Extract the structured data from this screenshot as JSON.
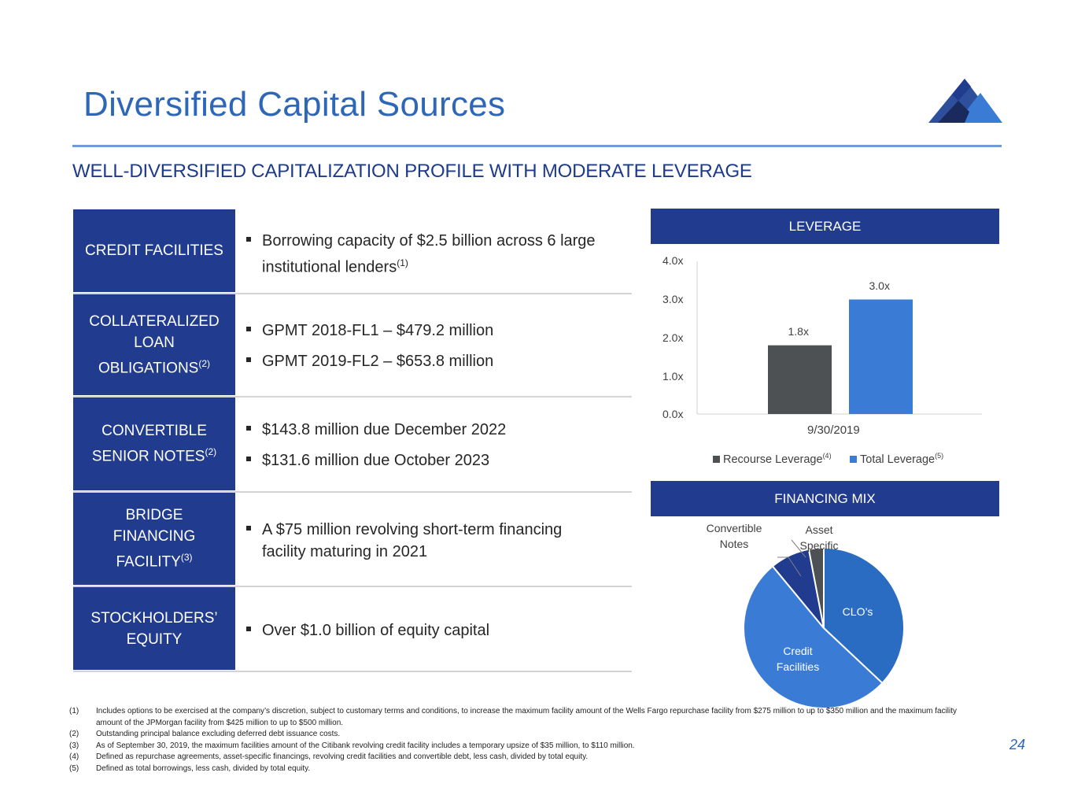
{
  "slide": {
    "title": "Diversified Capital Sources",
    "subtitle": "WELL-DIVERSIFIED CAPITALIZATION PROFILE WITH MODERATE LEVERAGE",
    "page_number": "24"
  },
  "sources": [
    {
      "label": "CREDIT FACILITIES",
      "sup": "",
      "bullets": [
        {
          "text": "Borrowing capacity of $2.5 billion across 6 large institutional lenders",
          "sup": "(1)"
        }
      ]
    },
    {
      "label": "COLLATERALIZED LOAN OBLIGATIONS",
      "sup": "(2)",
      "bullets": [
        {
          "text": "GPMT 2018-FL1 – $479.2 million",
          "sup": ""
        },
        {
          "text": "GPMT 2019-FL2 – $653.8 million",
          "sup": ""
        }
      ]
    },
    {
      "label": "CONVERTIBLE SENIOR NOTES",
      "sup": "(2)",
      "bullets": [
        {
          "text": "$143.8 million due December 2022",
          "sup": ""
        },
        {
          "text": "$131.6 million due October 2023",
          "sup": ""
        }
      ]
    },
    {
      "label": "BRIDGE FINANCING FACILITY",
      "sup": "(3)",
      "bullets": [
        {
          "text": "A $75 million revolving short-term financing facility maturing in 2021",
          "sup": ""
        }
      ]
    },
    {
      "label": "STOCKHOLDERS’ EQUITY",
      "sup": "",
      "bullets": [
        {
          "text": "Over $1.0 billion of equity capital",
          "sup": ""
        }
      ]
    }
  ],
  "leverage_panel": {
    "title": "LEVERAGE"
  },
  "financing_panel": {
    "title": "FINANCING MIX"
  },
  "chart_data": [
    {
      "type": "bar",
      "title": "LEVERAGE",
      "categories": [
        "9/30/2019"
      ],
      "series": [
        {
          "name": "Recourse Leverage",
          "sup": "(4)",
          "values": [
            1.8
          ],
          "color": "#4d5154",
          "label": "1.8x"
        },
        {
          "name": "Total Leverage",
          "sup": "(5)",
          "values": [
            3.0
          ],
          "color": "#3a7bd5",
          "label": "3.0x"
        }
      ],
      "ylim": [
        0,
        4
      ],
      "yticks": [
        "0.0x",
        "1.0x",
        "2.0x",
        "3.0x",
        "4.0x"
      ],
      "legend": "bottom",
      "grid": false
    },
    {
      "type": "pie",
      "title": "FINANCING MIX",
      "slices": [
        {
          "label": "CLO’s",
          "value": 37,
          "color": "#2a6cc1"
        },
        {
          "label": "Credit Facilities",
          "value": 52,
          "color": "#3a7bd5"
        },
        {
          "label": "Convertible Notes",
          "value": 8,
          "color": "#213c8f"
        },
        {
          "label": "Asset Specific",
          "value": 3,
          "color": "#4d5154"
        }
      ]
    }
  ],
  "footnotes": [
    {
      "num": "(1)",
      "text": "Includes options to be exercised at the company’s discretion, subject to customary terms and conditions, to increase the maximum facility amount of the Wells Fargo repurchase facility from $275 million to up to $350 million and the maximum facility amount of the JPMorgan facility from $425 million to up to $500 million."
    },
    {
      "num": "(2)",
      "text": "Outstanding principal balance excluding deferred debt issuance costs."
    },
    {
      "num": "(3)",
      "text": "As of September 30, 2019, the maximum facilities amount of the Citibank revolving credit facility includes a temporary upsize of $35 million, to $110 million."
    },
    {
      "num": "(4)",
      "text": "Defined as repurchase agreements, asset-specific financings, revolving credit facilities and convertible debt, less cash, divided by total equity."
    },
    {
      "num": "(5)",
      "text": "Defined as total borrowings, less cash, divided by total equity."
    }
  ]
}
